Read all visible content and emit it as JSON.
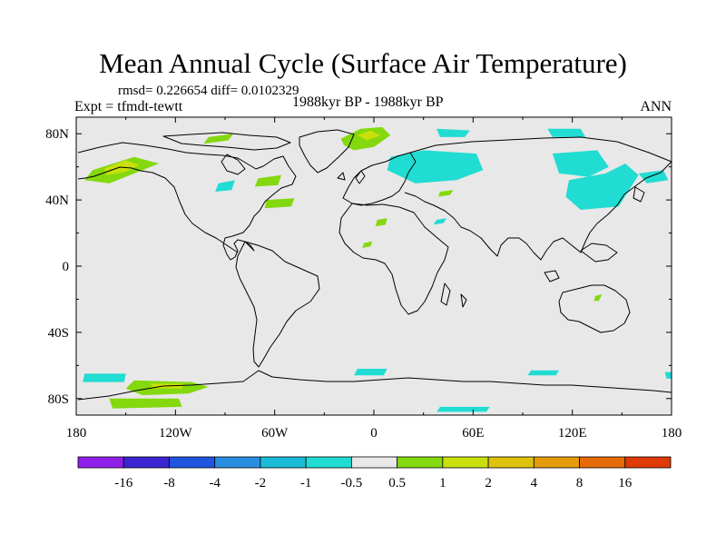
{
  "chart_data": {
    "type": "heatmap",
    "title": "Mean Annual Cycle (Surface Air Temperature)",
    "stats_text": "rmsd= 0.226654 diff= 0.0102329",
    "left_label": "Expt = tfmdt-tewtt",
    "center_label": "1988kyr BP - 1988kyr BP",
    "right_label": "ANN",
    "x_ticks": [
      "180",
      "120W",
      "60W",
      "0",
      "60E",
      "120E",
      "180"
    ],
    "x_values": [
      -180,
      -120,
      -60,
      0,
      60,
      120,
      180
    ],
    "y_ticks": [
      "80N",
      "40N",
      "0",
      "40S",
      "80S"
    ],
    "y_values": [
      80,
      40,
      0,
      -40,
      -80
    ],
    "xlim": [
      -180,
      180
    ],
    "ylim": [
      -90,
      90
    ],
    "colorbar": {
      "labels": [
        "-16",
        "-8",
        "-4",
        "-2",
        "-1",
        "-0.5",
        "0.5",
        "1",
        "2",
        "4",
        "8",
        "16"
      ],
      "colors": [
        "#8f1fe8",
        "#3b25d0",
        "#1f55e0",
        "#2a8ee0",
        "#1bbcd8",
        "#21dcd2",
        "#e8e8e8",
        "#84d80e",
        "#c9e00c",
        "#dfc20c",
        "#e49c0a",
        "#e56b08",
        "#e03a08"
      ]
    },
    "anomaly_regions": [
      {
        "name": "alaska",
        "level": "1",
        "color": "#84d80e",
        "lon": [
          -170,
          -145,
          -130,
          -145,
          -160,
          -175
        ],
        "lat": [
          58,
          66,
          62,
          56,
          50,
          52
        ]
      },
      {
        "name": "alaska-core",
        "level": "2",
        "color": "#c9e00c",
        "lon": [
          -163,
          -150,
          -142,
          -150,
          -162
        ],
        "lat": [
          59,
          64,
          61,
          57,
          55
        ]
      },
      {
        "name": "greenland-sea",
        "level": "1",
        "color": "#84d80e",
        "lon": [
          -20,
          -8,
          5,
          10,
          0,
          -12,
          -18
        ],
        "lat": [
          77,
          83,
          84,
          79,
          72,
          70,
          73
        ]
      },
      {
        "name": "greenland-sea-core",
        "level": "2",
        "color": "#c9e00c",
        "lon": [
          -10,
          -2,
          4,
          -4
        ],
        "lat": [
          79,
          82,
          79,
          76
        ]
      },
      {
        "name": "arctic-canada",
        "level": "1",
        "color": "#84d80e",
        "lon": [
          -100,
          -85,
          -88,
          -103
        ],
        "lat": [
          78,
          80,
          76,
          74
        ]
      },
      {
        "name": "barents",
        "level": "-1",
        "color": "#21dcd2",
        "lon": [
          38,
          58,
          55,
          40
        ],
        "lat": [
          83,
          82,
          78,
          78
        ]
      },
      {
        "name": "west-siberia",
        "level": "-1",
        "color": "#21dcd2",
        "lon": [
          10,
          30,
          62,
          66,
          50,
          25,
          8
        ],
        "lat": [
          66,
          70,
          68,
          58,
          52,
          50,
          58
        ]
      },
      {
        "name": "east-siberia",
        "level": "-1",
        "color": "#21dcd2",
        "lon": [
          108,
          135,
          142,
          130,
          112
        ],
        "lat": [
          68,
          70,
          60,
          54,
          56
        ]
      },
      {
        "name": "kolyma",
        "level": "-1",
        "color": "#21dcd2",
        "lon": [
          105,
          125,
          128,
          108
        ],
        "lat": [
          83,
          83,
          78,
          78
        ]
      },
      {
        "name": "japan-sea",
        "level": "-1",
        "color": "#21dcd2",
        "lon": [
          118,
          140,
          152,
          160,
          148,
          125,
          116
        ],
        "lat": [
          52,
          56,
          62,
          55,
          36,
          34,
          42
        ]
      },
      {
        "name": "kamchatka",
        "level": "-1",
        "color": "#21dcd2",
        "lon": [
          160,
          175,
          178,
          165
        ],
        "lat": [
          56,
          58,
          52,
          50
        ]
      },
      {
        "name": "atlantic-front",
        "level": "1",
        "color": "#84d80e",
        "lon": [
          -65,
          -48,
          -50,
          -66
        ],
        "lat": [
          40,
          41,
          36,
          35
        ]
      },
      {
        "name": "atlantic-west",
        "level": "1",
        "color": "#84d80e",
        "lon": [
          -70,
          -56,
          -58,
          -72
        ],
        "lat": [
          53,
          55,
          49,
          48
        ]
      },
      {
        "name": "canada-lakes",
        "level": "-1",
        "color": "#21dcd2",
        "lon": [
          -94,
          -84,
          -86,
          -96
        ],
        "lat": [
          50,
          52,
          46,
          45
        ]
      },
      {
        "name": "sahara-a",
        "level": "1",
        "color": "#84d80e",
        "lon": [
          2,
          8,
          7,
          1
        ],
        "lat": [
          28,
          29,
          25,
          24
        ]
      },
      {
        "name": "sahara-b",
        "level": "1",
        "color": "#84d80e",
        "lon": [
          -6,
          -1,
          -2,
          -7
        ],
        "lat": [
          14,
          15,
          12,
          11
        ]
      },
      {
        "name": "arabia",
        "level": "-1",
        "color": "#21dcd2",
        "lon": [
          38,
          44,
          42,
          36
        ],
        "lat": [
          28,
          29,
          26,
          25
        ]
      },
      {
        "name": "central-asia",
        "level": "1",
        "color": "#84d80e",
        "lon": [
          40,
          48,
          46,
          39
        ],
        "lat": [
          45,
          46,
          43,
          42
        ]
      },
      {
        "name": "australia",
        "level": "1",
        "color": "#84d80e",
        "lon": [
          134,
          138,
          136,
          133
        ],
        "lat": [
          -18,
          -17,
          -21,
          -21
        ]
      },
      {
        "name": "ross-west",
        "level": "-1",
        "color": "#21dcd2",
        "lon": [
          -175,
          -150,
          -151,
          -176
        ],
        "lat": [
          -65,
          -65,
          -70,
          -70
        ]
      },
      {
        "name": "weddell-a",
        "level": "-1",
        "color": "#21dcd2",
        "lon": [
          -10,
          8,
          6,
          -12
        ],
        "lat": [
          -62,
          -62,
          -66,
          -66
        ]
      },
      {
        "name": "indian-ocean",
        "level": "-1",
        "color": "#21dcd2",
        "lon": [
          95,
          112,
          110,
          93
        ],
        "lat": [
          -63,
          -63,
          -66,
          -66
        ]
      },
      {
        "name": "ross-east",
        "level": "-1",
        "color": "#21dcd2",
        "lon": [
          176,
          180,
          180,
          177
        ],
        "lat": [
          -64,
          -64,
          -68,
          -68
        ]
      },
      {
        "name": "amundsen",
        "level": "1",
        "color": "#84d80e",
        "lon": [
          -145,
          -110,
          -100,
          -112,
          -140,
          -150
        ],
        "lat": [
          -69,
          -70,
          -73,
          -77,
          -78,
          -74
        ]
      },
      {
        "name": "amundsen-core",
        "level": "2",
        "color": "#c9e00c",
        "lon": [
          -135,
          -115,
          -116,
          -134
        ],
        "lat": [
          -71,
          -71,
          -74,
          -74
        ]
      },
      {
        "name": "antarctica-south",
        "level": "1",
        "color": "#84d80e",
        "lon": [
          -160,
          -118,
          -116,
          -158
        ],
        "lat": [
          -80,
          -80,
          -85,
          -86
        ]
      },
      {
        "name": "east-antarctica",
        "level": "-1",
        "color": "#21dcd2",
        "lon": [
          40,
          70,
          68,
          38
        ],
        "lat": [
          -85,
          -85,
          -88,
          -88
        ]
      }
    ]
  }
}
